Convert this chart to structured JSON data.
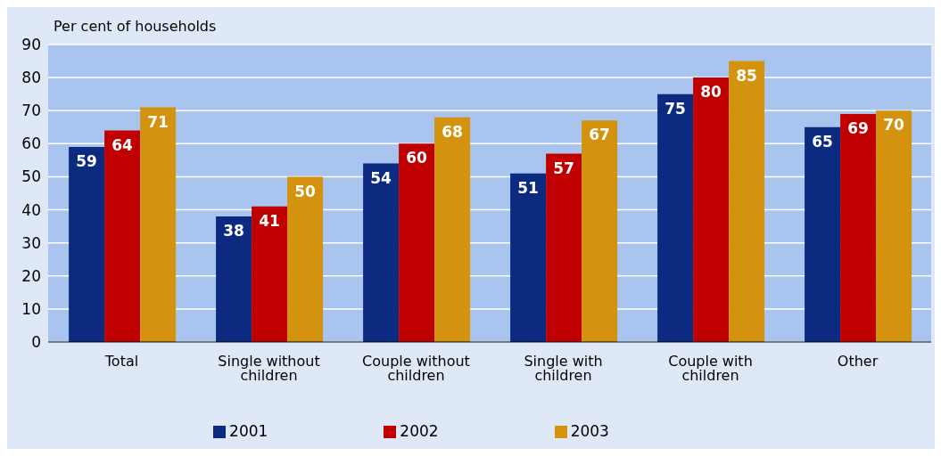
{
  "chart_data": {
    "type": "bar",
    "ylabel": "Per cent of households",
    "categories": [
      "Total",
      "Single without children",
      "Couple without children",
      "Single with children",
      "Couple with children",
      "Other"
    ],
    "series": [
      {
        "name": "2001",
        "color": "#0b2a80",
        "values": [
          59,
          38,
          54,
          51,
          75,
          65
        ]
      },
      {
        "name": "2002",
        "color": "#c00000",
        "values": [
          64,
          41,
          60,
          57,
          80,
          69
        ]
      },
      {
        "name": "2003",
        "color": "#d4930e",
        "values": [
          71,
          50,
          68,
          67,
          85,
          70
        ]
      }
    ],
    "ylim": [
      0,
      90
    ],
    "yticks": [
      0,
      10,
      20,
      30,
      40,
      50,
      60,
      70,
      80,
      90
    ],
    "grid": "y",
    "legend": "bottom",
    "data_labels": true
  }
}
